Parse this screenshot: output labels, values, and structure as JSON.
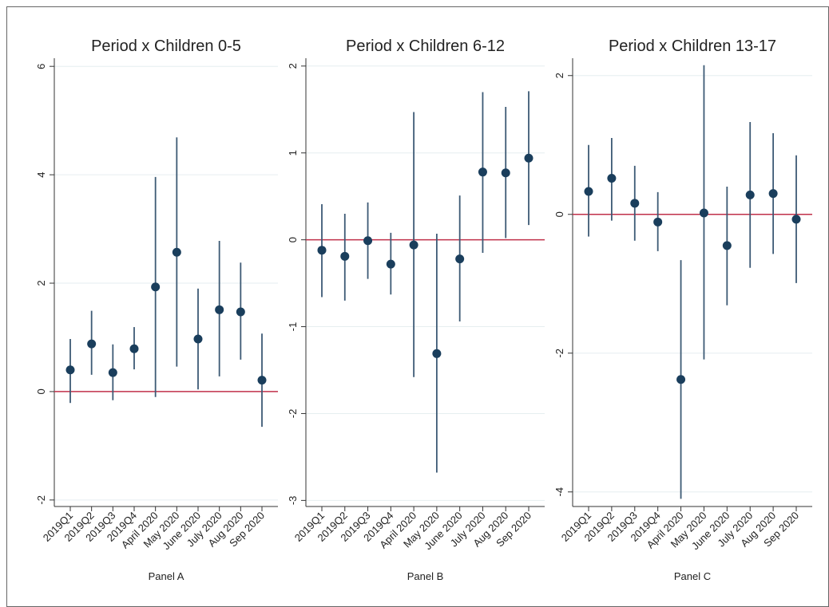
{
  "chart_data": [
    {
      "type": "errorbar",
      "title": "Period x Children 0-5",
      "xlabel": "Panel A",
      "categories": [
        "2019Q1",
        "2019Q2",
        "2019Q3",
        "2019Q4",
        "April 2020",
        "May 2020",
        "June 2020",
        "July 2020",
        "Aug 2020",
        "Sep 2020"
      ],
      "values": [
        0.4,
        0.88,
        0.35,
        0.79,
        1.93,
        2.57,
        0.97,
        1.51,
        1.47,
        0.21
      ],
      "lower": [
        -0.21,
        0.31,
        -0.16,
        0.41,
        -0.1,
        0.46,
        0.04,
        0.28,
        0.59,
        -0.65
      ],
      "upper": [
        0.97,
        1.49,
        0.87,
        1.19,
        3.96,
        4.69,
        1.9,
        2.78,
        2.38,
        1.07
      ],
      "ylim": [
        -2.12,
        6.15
      ],
      "yticks": [
        -2,
        0,
        2,
        4,
        6
      ],
      "grid": true,
      "refline": 0,
      "refline_color": "#c0304a",
      "color": "#1a3e5c",
      "bar_color": "#3d5a75"
    },
    {
      "type": "errorbar",
      "title": "Period x Children 6-12",
      "xlabel": "Panel B",
      "categories": [
        "2019Q1",
        "2019Q2",
        "2019Q3",
        "2019Q4",
        "April 2020",
        "May 2020",
        "June 2020",
        "July 2020",
        "Aug 2020",
        "Sep 2020"
      ],
      "values": [
        -0.12,
        -0.19,
        -0.01,
        -0.28,
        -0.06,
        -1.31,
        -0.22,
        0.78,
        0.77,
        0.94
      ],
      "lower": [
        -0.66,
        -0.7,
        -0.45,
        -0.63,
        -1.58,
        -2.68,
        -0.94,
        -0.15,
        0.02,
        0.17
      ],
      "upper": [
        0.41,
        0.3,
        0.43,
        0.08,
        1.47,
        0.07,
        0.51,
        1.7,
        1.53,
        1.71
      ],
      "ylim": [
        -3.07,
        2.09
      ],
      "yticks": [
        -3,
        -2,
        -1,
        0,
        1,
        2
      ],
      "grid": true,
      "refline": 0,
      "refline_color": "#c0304a",
      "color": "#1a3e5c",
      "bar_color": "#3d5a75"
    },
    {
      "type": "errorbar",
      "title": "Period x Children 13-17",
      "xlabel": "Panel C",
      "categories": [
        "2019Q1",
        "2019Q2",
        "2019Q3",
        "2019Q4",
        "April 2020",
        "May 2020",
        "June 2020",
        "July 2020",
        "Aug 2020",
        "Sep 2020"
      ],
      "values": [
        0.33,
        0.52,
        0.16,
        -0.11,
        -2.38,
        0.02,
        -0.45,
        0.28,
        0.3,
        -0.07
      ],
      "lower": [
        -0.32,
        -0.09,
        -0.38,
        -0.53,
        -4.1,
        -2.09,
        -1.31,
        -0.77,
        -0.57,
        -0.99
      ],
      "upper": [
        1.0,
        1.1,
        0.7,
        0.32,
        -0.66,
        2.15,
        0.4,
        1.33,
        1.17,
        0.85
      ],
      "ylim": [
        -4.21,
        2.25
      ],
      "yticks": [
        -4,
        -2,
        0,
        2
      ],
      "grid": true,
      "refline": 0,
      "refline_color": "#c0304a",
      "color": "#1a3e5c",
      "bar_color": "#3d5a75"
    }
  ]
}
